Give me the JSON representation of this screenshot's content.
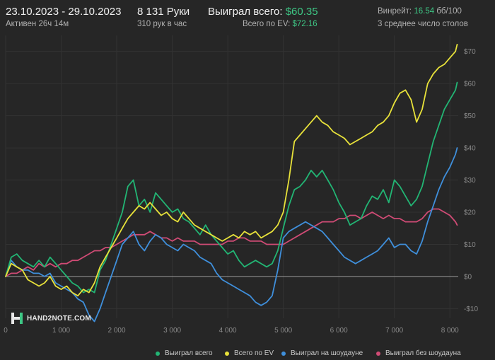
{
  "header": {
    "date_range": "23.10.2023 - 29.10.2023",
    "active": "Активен 26ч 14м",
    "hands": "8 131 Руки",
    "hands_per_hour": "310 рук в час",
    "won_label": "Выиграл всего:",
    "won_value": "$60.35",
    "ev_label": "Всего по EV:",
    "ev_value": "$72.16",
    "winrate_label": "Винрейт:",
    "winrate_value": "16.54",
    "winrate_unit": "бб/100",
    "tables": "3 среднее число столов"
  },
  "logo_text": "HAND2NOTE.COM",
  "chart_data": {
    "type": "line",
    "xlim": [
      0,
      8150
    ],
    "ylim": [
      -13,
      75
    ],
    "x_ticks": [
      0,
      1000,
      2000,
      3000,
      4000,
      5000,
      6000,
      7000,
      8000
    ],
    "x_tick_labels": [
      "0",
      "1 000",
      "2 000",
      "3 000",
      "4 000",
      "5 000",
      "6 000",
      "7 000",
      "8 000"
    ],
    "y_ticks": [
      -10,
      0,
      10,
      20,
      30,
      40,
      50,
      60,
      70
    ],
    "y_tick_labels": [
      "-$10",
      "$0",
      "$10",
      "$20",
      "$30",
      "$40",
      "$50",
      "$60",
      "$70"
    ],
    "grid": true,
    "legend_position": "bottom-right",
    "series": [
      {
        "name": "Выиграл всего",
        "color": "#22b574",
        "x": [
          0,
          100,
          200,
          300,
          400,
          500,
          600,
          700,
          800,
          900,
          1000,
          1100,
          1200,
          1300,
          1400,
          1500,
          1600,
          1700,
          1800,
          1900,
          2000,
          2100,
          2200,
          2300,
          2400,
          2500,
          2600,
          2700,
          2800,
          2900,
          3000,
          3100,
          3200,
          3300,
          3400,
          3500,
          3600,
          3700,
          3800,
          3900,
          4000,
          4100,
          4200,
          4300,
          4400,
          4500,
          4600,
          4700,
          4800,
          4900,
          5000,
          5100,
          5200,
          5300,
          5400,
          5500,
          5600,
          5700,
          5800,
          5900,
          6000,
          6100,
          6200,
          6300,
          6400,
          6500,
          6600,
          6700,
          6800,
          6900,
          7000,
          7100,
          7200,
          7300,
          7400,
          7500,
          7600,
          7700,
          7800,
          7900,
          8000,
          8100,
          8131
        ],
        "y": [
          0,
          6,
          7,
          5,
          4,
          3,
          5,
          3,
          6,
          4,
          2,
          0,
          -2,
          -3,
          -5,
          -4,
          -5,
          2,
          5,
          10,
          15,
          20,
          28,
          30,
          22,
          24,
          20,
          26,
          24,
          22,
          20,
          21,
          18,
          17,
          15,
          13,
          16,
          13,
          11,
          9,
          7,
          8,
          5,
          3,
          4,
          5,
          4,
          3,
          4,
          8,
          15,
          22,
          27,
          28,
          30,
          33,
          31,
          33,
          30,
          27,
          23,
          20,
          16,
          17,
          18,
          22,
          25,
          24,
          27,
          23,
          30,
          28,
          25,
          22,
          24,
          28,
          35,
          42,
          47,
          52,
          55,
          58,
          60.35
        ]
      },
      {
        "name": "Всего по EV",
        "color": "#e8e23a",
        "x": [
          0,
          100,
          200,
          300,
          400,
          500,
          600,
          700,
          800,
          900,
          1000,
          1100,
          1200,
          1300,
          1400,
          1500,
          1600,
          1700,
          1800,
          1900,
          2000,
          2100,
          2200,
          2300,
          2400,
          2500,
          2600,
          2700,
          2800,
          2900,
          3000,
          3100,
          3200,
          3300,
          3400,
          3500,
          3600,
          3700,
          3800,
          3900,
          4000,
          4100,
          4200,
          4300,
          4400,
          4500,
          4600,
          4700,
          4800,
          4900,
          5000,
          5100,
          5200,
          5300,
          5400,
          5500,
          5600,
          5700,
          5800,
          5900,
          6000,
          6100,
          6200,
          6300,
          6400,
          6500,
          6600,
          6700,
          6800,
          6900,
          7000,
          7100,
          7200,
          7300,
          7400,
          7500,
          7600,
          7700,
          7800,
          7900,
          8000,
          8100,
          8131
        ],
        "y": [
          0,
          4,
          3,
          2,
          -1,
          -2,
          -3,
          -2,
          0,
          -3,
          -4,
          -3,
          -5,
          -6,
          -4,
          -5,
          -2,
          3,
          6,
          9,
          12,
          15,
          18,
          20,
          22,
          21,
          23,
          21,
          19,
          20,
          18,
          17,
          20,
          18,
          16,
          15,
          14,
          13,
          12,
          11,
          12,
          13,
          12,
          14,
          13,
          14,
          12,
          13,
          14,
          16,
          20,
          30,
          42,
          44,
          46,
          48,
          50,
          48,
          47,
          45,
          44,
          43,
          41,
          42,
          43,
          44,
          45,
          47,
          48,
          50,
          54,
          57,
          58,
          55,
          48,
          52,
          60,
          63,
          65,
          66,
          68,
          70,
          72.16
        ]
      },
      {
        "name": "Выиграл на шоудауне",
        "color": "#3f8fdb",
        "x": [
          0,
          100,
          200,
          300,
          400,
          500,
          600,
          700,
          800,
          900,
          1000,
          1100,
          1200,
          1300,
          1400,
          1500,
          1600,
          1700,
          1800,
          1900,
          2000,
          2100,
          2200,
          2300,
          2400,
          2500,
          2600,
          2700,
          2800,
          2900,
          3000,
          3100,
          3200,
          3300,
          3400,
          3500,
          3600,
          3700,
          3800,
          3900,
          4000,
          4100,
          4200,
          4300,
          4400,
          4500,
          4600,
          4700,
          4800,
          4900,
          5000,
          5100,
          5200,
          5300,
          5400,
          5500,
          5600,
          5700,
          5800,
          5900,
          6000,
          6100,
          6200,
          6300,
          6400,
          6500,
          6600,
          6700,
          6800,
          6900,
          7000,
          7100,
          7200,
          7300,
          7400,
          7500,
          7600,
          7700,
          7800,
          7900,
          8000,
          8100,
          8131
        ],
        "y": [
          0,
          5,
          3,
          2,
          2,
          1,
          1,
          0,
          1,
          -2,
          -3,
          -4,
          -5,
          -7,
          -8,
          -12,
          -14,
          -10,
          -5,
          0,
          5,
          10,
          12,
          14,
          10,
          8,
          11,
          13,
          12,
          10,
          9,
          8,
          10,
          9,
          8,
          6,
          5,
          4,
          1,
          -1,
          -2,
          -3,
          -4,
          -5,
          -6,
          -8,
          -9,
          -8,
          -6,
          2,
          12,
          14,
          15,
          16,
          17,
          16,
          15,
          14,
          12,
          10,
          8,
          6,
          5,
          4,
          5,
          6,
          7,
          8,
          10,
          12,
          9,
          10,
          10,
          8,
          7,
          11,
          17,
          22,
          27,
          31,
          34,
          38,
          40
        ]
      },
      {
        "name": "Выиграл без шоудауна",
        "color": "#d04b75",
        "x": [
          0,
          100,
          200,
          300,
          400,
          500,
          600,
          700,
          800,
          900,
          1000,
          1100,
          1200,
          1300,
          1400,
          1500,
          1600,
          1700,
          1800,
          1900,
          2000,
          2100,
          2200,
          2300,
          2400,
          2500,
          2600,
          2700,
          2800,
          2900,
          3000,
          3100,
          3200,
          3300,
          3400,
          3500,
          3600,
          3700,
          3800,
          3900,
          4000,
          4100,
          4200,
          4300,
          4400,
          4500,
          4600,
          4700,
          4800,
          4900,
          5000,
          5100,
          5200,
          5300,
          5400,
          5500,
          5600,
          5700,
          5800,
          5900,
          6000,
          6100,
          6200,
          6300,
          6400,
          6500,
          6600,
          6700,
          6800,
          6900,
          7000,
          7100,
          7200,
          7300,
          7400,
          7500,
          7600,
          7700,
          7800,
          7900,
          8000,
          8100,
          8131
        ],
        "y": [
          0,
          1,
          1,
          2,
          3,
          2,
          4,
          3,
          4,
          3,
          4,
          4,
          5,
          5,
          6,
          7,
          8,
          8,
          9,
          9,
          10,
          11,
          12,
          13,
          13,
          13,
          14,
          13,
          12,
          12,
          11,
          12,
          11,
          11,
          11,
          10,
          10,
          10,
          10,
          10,
          11,
          11,
          12,
          12,
          11,
          11,
          11,
          10,
          10,
          10,
          10,
          11,
          12,
          13,
          14,
          15,
          16,
          17,
          17,
          17,
          18,
          18,
          19,
          19,
          18,
          19,
          20,
          19,
          18,
          19,
          18,
          18,
          17,
          17,
          17,
          18,
          20,
          21,
          21,
          20,
          19,
          17,
          16
        ]
      }
    ]
  }
}
